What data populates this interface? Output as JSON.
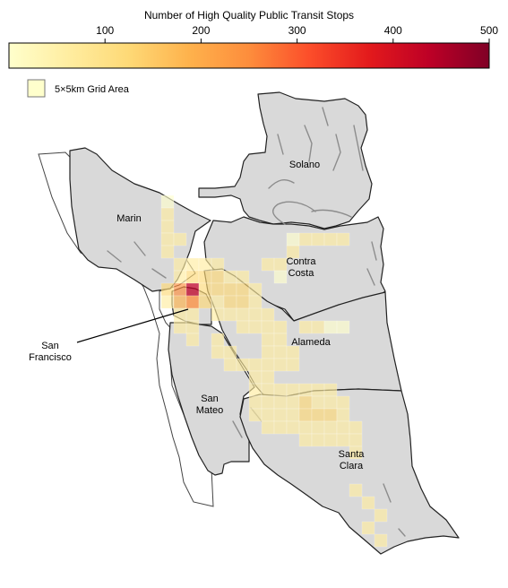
{
  "colorbar": {
    "title": "Number of High Quality Public Transit Stops",
    "ticks": [
      100,
      200,
      300,
      400,
      500
    ],
    "tick_labels": [
      "100",
      "200",
      "300",
      "400",
      "500"
    ],
    "range": [
      0,
      500
    ],
    "colormap": [
      "#ffffcc",
      "#ffeda0",
      "#fed976",
      "#feb24c",
      "#fd8d3c",
      "#fc4e2a",
      "#e31a1c",
      "#bd0026",
      "#800026"
    ]
  },
  "legend": {
    "label": "5×5km Grid Area",
    "swatch_color": "#ffffcc"
  },
  "counties": {
    "solano": {
      "name": "Solano"
    },
    "marin": {
      "name": "Marin"
    },
    "contra_costa": {
      "name": "Contra\nCosta"
    },
    "san_francisco": {
      "name": "San\nFrancisco"
    },
    "alameda": {
      "name": "Alameda"
    },
    "san_mateo": {
      "name": "San\nMateo"
    },
    "santa_clara": {
      "name": "Santa\nClara"
    }
  },
  "style": {
    "land_fill": "#d9d9d9",
    "border_color": "#222222",
    "water_color": "#8c8c8c"
  }
}
